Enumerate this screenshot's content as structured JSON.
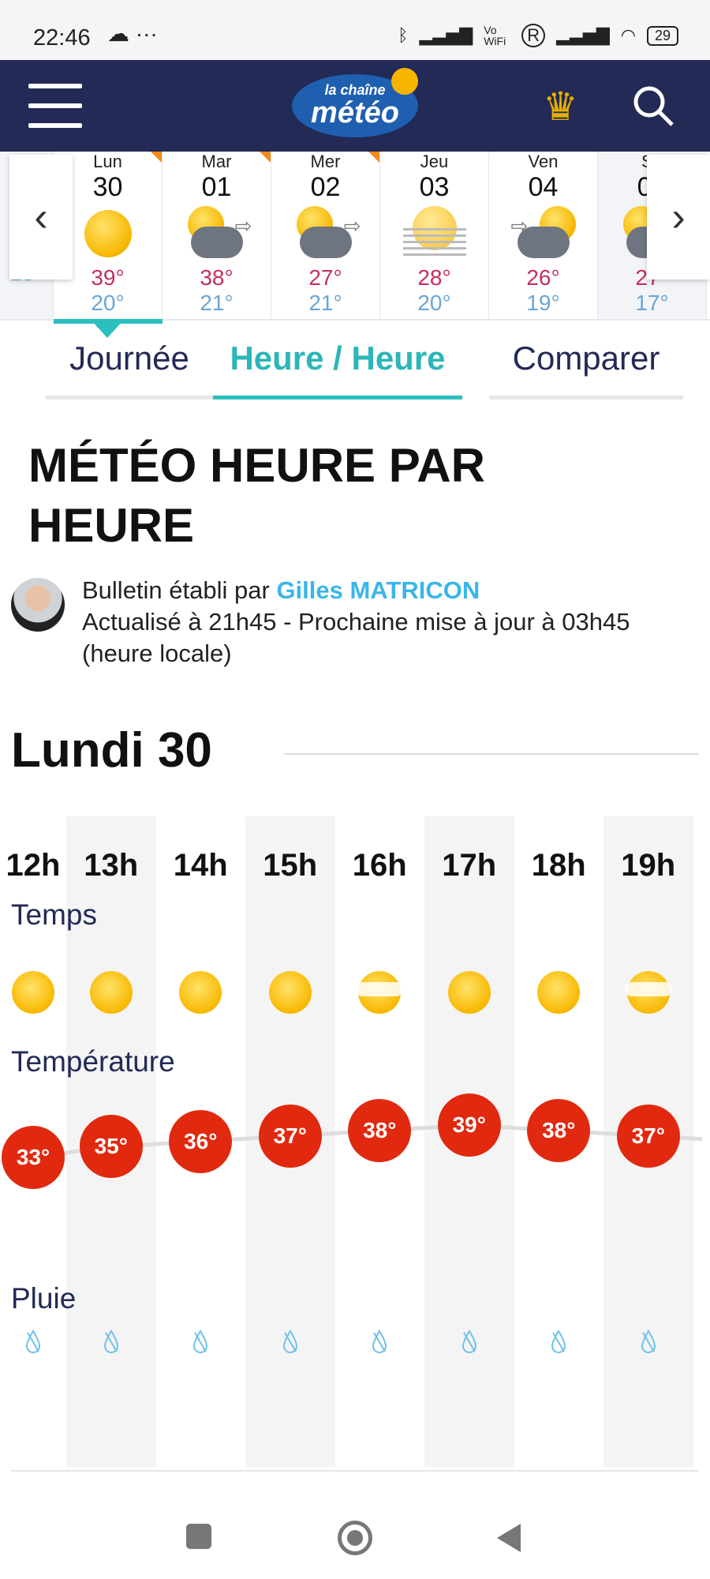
{
  "status": {
    "time": "22:46",
    "icons": [
      "cloud-icon",
      "more-icon",
      "bluetooth-icon",
      "signal-icon",
      "vowifi-icon",
      "roaming-icon",
      "signal-icon",
      "wifi-icon"
    ],
    "vowifi": "Vo WiFi",
    "roaming": "R",
    "battery": "29"
  },
  "header": {
    "logo_top": "la chaîne",
    "logo_main": "météo",
    "icons": [
      "menu-icon",
      "crown-icon",
      "search-icon"
    ]
  },
  "days": [
    {
      "name": "Lun",
      "date": "30",
      "icon": "sun",
      "hi": "39°",
      "lo": "20°",
      "alert": true,
      "selected": true
    },
    {
      "name": "Mar",
      "date": "01",
      "icon": "sun-storm-wind",
      "hi": "38°",
      "lo": "21°",
      "alert": true
    },
    {
      "name": "Mer",
      "date": "02",
      "icon": "sun-storm-wind",
      "hi": "27°",
      "lo": "21°",
      "alert": true
    },
    {
      "name": "Jeu",
      "date": "03",
      "icon": "sun-fog",
      "hi": "28°",
      "lo": "20°"
    },
    {
      "name": "Ven",
      "date": "04",
      "icon": "sun-storm-wind",
      "hi": "26°",
      "lo": "19°"
    },
    {
      "name": "Sa",
      "date": "05",
      "icon": "sun-cloud",
      "hi": "27°",
      "lo": "17°"
    }
  ],
  "prev_partial": {
    "hi": "35°",
    "lo": "18°"
  },
  "tabs": [
    {
      "label": "Journée"
    },
    {
      "label": "Heure / Heure",
      "active": true
    },
    {
      "label": "Comparer"
    }
  ],
  "title": "MÉTÉO HEURE PAR HEURE",
  "bulletin": {
    "prefix": "Bulletin établi par ",
    "author": "Gilles MATRICON",
    "update": "Actualisé à 21h45 - Prochaine mise à jour à 03h45 (heure locale)"
  },
  "day_title": "Lundi 30",
  "rows": {
    "weather": "Temps",
    "temperature": "Température",
    "rain": "Pluie"
  },
  "hours": [
    {
      "h": "12h",
      "icon": "sun",
      "t": "33°",
      "v": 33
    },
    {
      "h": "13h",
      "icon": "sun",
      "t": "35°",
      "v": 35
    },
    {
      "h": "14h",
      "icon": "sun",
      "t": "36°",
      "v": 36
    },
    {
      "h": "15h",
      "icon": "sun",
      "t": "37°",
      "v": 37
    },
    {
      "h": "16h",
      "icon": "sun-veiled",
      "t": "38°",
      "v": 38
    },
    {
      "h": "17h",
      "icon": "sun",
      "t": "39°",
      "v": 39
    },
    {
      "h": "18h",
      "icon": "sun",
      "t": "38°",
      "v": 38
    },
    {
      "h": "19h",
      "icon": "sun-veiled",
      "t": "37°",
      "v": 37
    }
  ],
  "colors": {
    "header": "#222a55",
    "accent": "#2cbfbf",
    "temp": "#e1290f",
    "hi": "#c4305b",
    "lo": "#6aa6d6"
  }
}
